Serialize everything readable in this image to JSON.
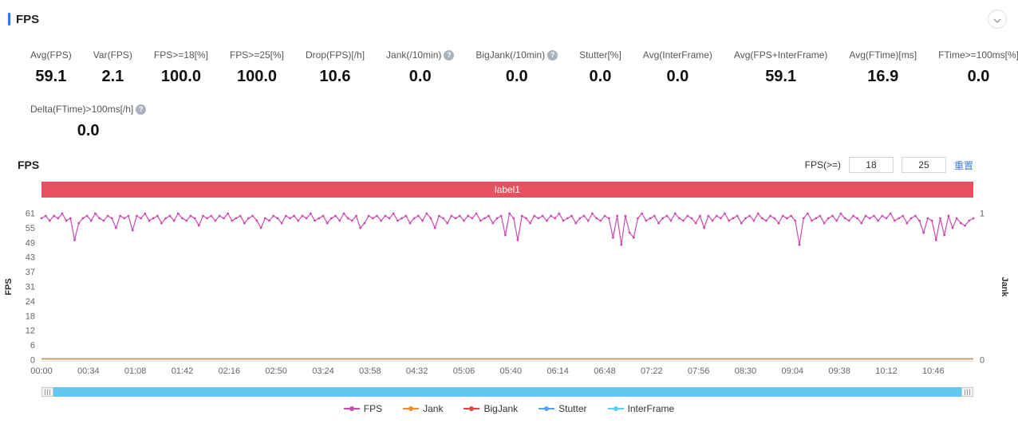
{
  "header": {
    "title": "FPS"
  },
  "colors": {
    "accent": "#2e7bff",
    "scrollbar": "#5fc9f2"
  },
  "stats": [
    {
      "label": "Avg(FPS)",
      "value": "59.1",
      "help": false
    },
    {
      "label": "Var(FPS)",
      "value": "2.1",
      "help": false
    },
    {
      "label": "FPS>=18[%]",
      "value": "100.0",
      "help": false
    },
    {
      "label": "FPS>=25[%]",
      "value": "100.0",
      "help": false
    },
    {
      "label": "Drop(FPS)[/h]",
      "value": "10.6",
      "help": false
    },
    {
      "label": "Jank(/10min)",
      "value": "0.0",
      "help": true
    },
    {
      "label": "BigJank(/10min)",
      "value": "0.0",
      "help": true
    },
    {
      "label": "Stutter[%]",
      "value": "0.0",
      "help": false
    },
    {
      "label": "Avg(InterFrame)",
      "value": "0.0",
      "help": false
    },
    {
      "label": "Avg(FPS+InterFrame)",
      "value": "59.1",
      "help": false
    },
    {
      "label": "Avg(FTime)[ms]",
      "value": "16.9",
      "help": false
    },
    {
      "label": "FTime>=100ms[%]",
      "value": "0.0",
      "help": false
    }
  ],
  "stats_row2": [
    {
      "label": "Delta(FTime)>100ms[/h]",
      "value": "0.0",
      "help": true
    }
  ],
  "chart_controls": {
    "section_title": "FPS",
    "threshold_label": "FPS(>=)",
    "threshold1": "18",
    "threshold2": "25",
    "reset_label": "重置"
  },
  "chart_data": {
    "type": "line",
    "title": "label1",
    "banner_color": "#e8515f",
    "ylabel_left": "FPS",
    "ylabel_right": "Jank",
    "y_ticks": [
      0,
      6,
      12,
      18,
      24,
      31,
      37,
      43,
      49,
      55,
      61
    ],
    "y_max": 61,
    "right_ticks": [
      0,
      1
    ],
    "right_max": 1,
    "x_ticks": [
      "00:00",
      "00:34",
      "01:08",
      "01:42",
      "02:16",
      "02:50",
      "03:24",
      "03:58",
      "04:32",
      "05:06",
      "05:40",
      "06:14",
      "06:48",
      "07:22",
      "07:56",
      "08:30",
      "09:04",
      "09:38",
      "10:12",
      "10:46"
    ],
    "tick_interval_seconds": 34,
    "seconds_per_point": 3,
    "zero_line_color": "#c9a46a",
    "series": [
      {
        "name": "FPS",
        "color": "#cb49b2",
        "axis": "left",
        "values": [
          59,
          60,
          58,
          60,
          59,
          61,
          58,
          59,
          50,
          57,
          59,
          60,
          58,
          61,
          59,
          58,
          60,
          59,
          55,
          60,
          59,
          60,
          54,
          60,
          59,
          61,
          58,
          59,
          60,
          57,
          59,
          60,
          58,
          61,
          59,
          58,
          60,
          59,
          56,
          60,
          59,
          60,
          58,
          60,
          59,
          61,
          58,
          59,
          60,
          57,
          59,
          60,
          58,
          55,
          59,
          58,
          60,
          59,
          57,
          60,
          59,
          60,
          58,
          60,
          59,
          61,
          58,
          59,
          60,
          57,
          59,
          60,
          58,
          61,
          59,
          58,
          60,
          55,
          57,
          60,
          59,
          60,
          58,
          60,
          59,
          61,
          58,
          59,
          60,
          57,
          59,
          60,
          58,
          61,
          59,
          55,
          60,
          59,
          57,
          60,
          59,
          60,
          58,
          60,
          59,
          61,
          58,
          59,
          60,
          57,
          59,
          60,
          52,
          61,
          59,
          50,
          60,
          59,
          57,
          60,
          59,
          60,
          58,
          60,
          59,
          61,
          58,
          59,
          60,
          57,
          59,
          60,
          58,
          61,
          59,
          58,
          60,
          59,
          51,
          60,
          48,
          60,
          53,
          51,
          59,
          61,
          58,
          59,
          60,
          57,
          59,
          60,
          58,
          61,
          59,
          58,
          60,
          59,
          57,
          60,
          55,
          60,
          58,
          60,
          59,
          61,
          58,
          59,
          60,
          57,
          59,
          60,
          58,
          61,
          59,
          58,
          60,
          59,
          57,
          60,
          59,
          60,
          58,
          48,
          59,
          61,
          58,
          59,
          60,
          57,
          59,
          60,
          58,
          61,
          59,
          58,
          60,
          59,
          57,
          60,
          59,
          60,
          58,
          60,
          59,
          61,
          58,
          59,
          60,
          57,
          59,
          60,
          58,
          53,
          59,
          58,
          50,
          59,
          52,
          60,
          55,
          59,
          57,
          56,
          58,
          59
        ]
      },
      {
        "name": "Jank",
        "color": "#f08c2e",
        "axis": "right",
        "constant": 0
      },
      {
        "name": "BigJank",
        "color": "#e64340",
        "axis": "right",
        "constant": 0
      },
      {
        "name": "Stutter",
        "color": "#55a3e8",
        "axis": "right",
        "constant": 0
      },
      {
        "name": "InterFrame",
        "color": "#5ad0f0",
        "axis": "left",
        "constant": 0
      }
    ]
  }
}
